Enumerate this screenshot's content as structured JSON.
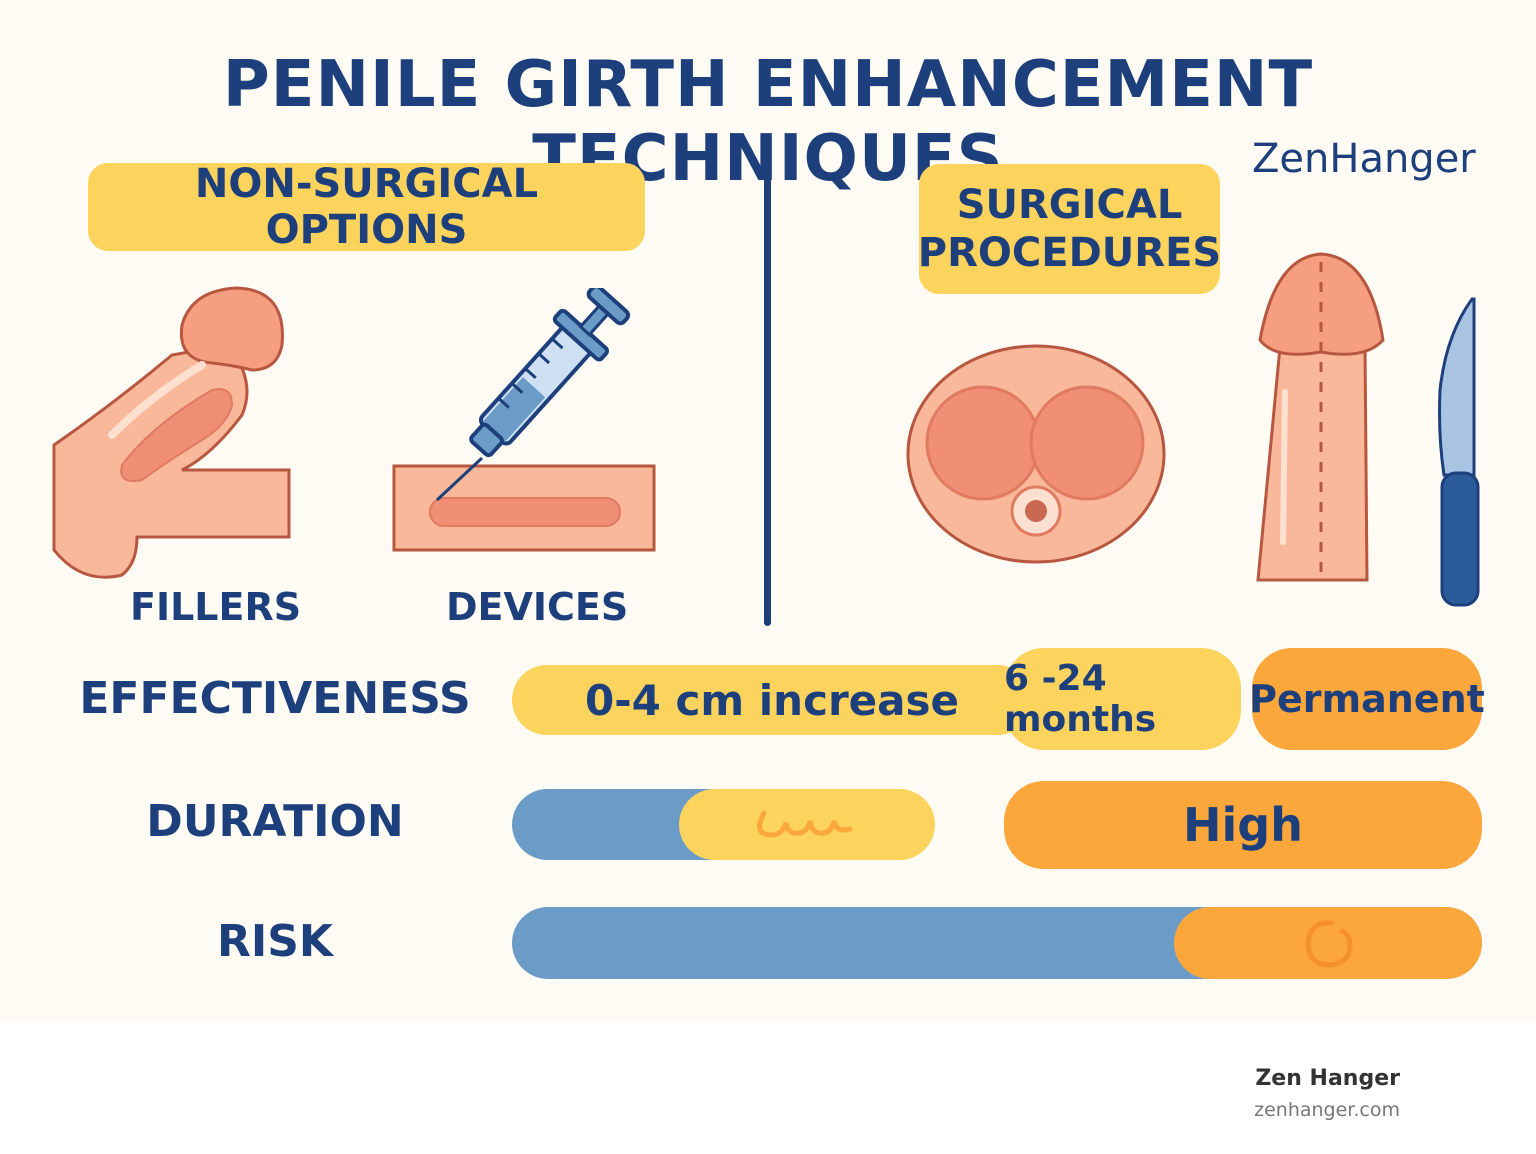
{
  "title": "PENILE GIRTH ENHANCEMENT TECHNIQUES",
  "brand": "ZenHanger",
  "sections": {
    "non_surgical": {
      "heading": "NON-SURGICAL OPTIONS",
      "items": [
        "FILLERS",
        "DEVICES"
      ]
    },
    "surgical": {
      "heading_line1": "SURGICAL",
      "heading_line2": "PROCEDURES"
    }
  },
  "rows": {
    "effectiveness": {
      "label": "EFFECTIVENESS",
      "range": "0-4 cm increase",
      "mid": "6 -24 months",
      "surgical": "Permanent"
    },
    "duration": {
      "label": "DURATION",
      "surgical": "High"
    },
    "risk": {
      "label": "RISK"
    }
  },
  "footer": {
    "name": "Zen Hanger",
    "url": "zenhanger.com"
  },
  "colors": {
    "navy": "#1d3f7c",
    "yellow": "#fbd35d",
    "orange": "#fba73c",
    "blue": "#6b9cc8",
    "skin": "#f9b89a",
    "skin_dark": "#f08f75",
    "outline": "#b8573f"
  },
  "icons": [
    "penis-filler-icon",
    "syringe-icon",
    "cross-section-icon",
    "penis-incision-icon",
    "scalpel-icon"
  ]
}
